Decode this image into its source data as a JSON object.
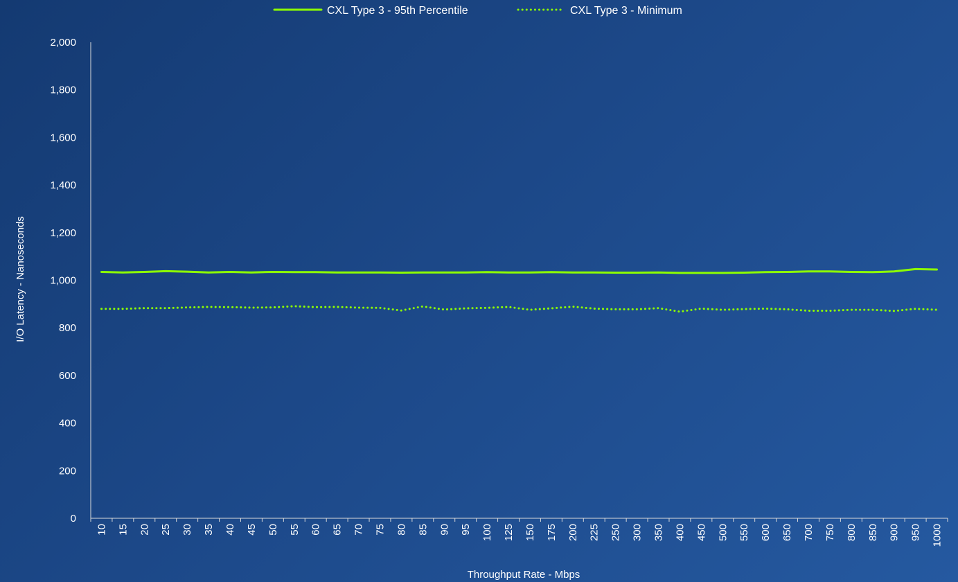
{
  "chart_data": {
    "type": "line",
    "title": "",
    "xlabel": "Throughput Rate - Mbps",
    "ylabel": "I/O Latency - Nanoseconds",
    "ylim": [
      0,
      2000
    ],
    "yticks": [
      "0",
      "200",
      "400",
      "600",
      "800",
      "1,000",
      "1,200",
      "1,400",
      "1,600",
      "1,800",
      "2,000"
    ],
    "yticks_values": [
      0,
      200,
      400,
      600,
      800,
      1000,
      1200,
      1400,
      1600,
      1800,
      2000
    ],
    "grid": false,
    "legend_position": "top-center",
    "categories": [
      "10",
      "15",
      "20",
      "25",
      "30",
      "35",
      "40",
      "45",
      "50",
      "55",
      "60",
      "65",
      "70",
      "75",
      "80",
      "85",
      "90",
      "95",
      "100",
      "125",
      "150",
      "175",
      "200",
      "225",
      "250",
      "300",
      "350",
      "400",
      "450",
      "500",
      "550",
      "600",
      "650",
      "700",
      "750",
      "800",
      "850",
      "900",
      "950",
      "1000"
    ],
    "series": [
      {
        "name": "CXL Type 3 - 95th Percentile",
        "style": "solid",
        "color": "#8dff00",
        "values": [
          1035,
          1033,
          1035,
          1038,
          1036,
          1033,
          1035,
          1033,
          1035,
          1034,
          1034,
          1033,
          1033,
          1033,
          1032,
          1033,
          1033,
          1033,
          1034,
          1033,
          1033,
          1034,
          1033,
          1033,
          1032,
          1032,
          1033,
          1031,
          1031,
          1031,
          1032,
          1034,
          1035,
          1037,
          1037,
          1035,
          1034,
          1037,
          1047,
          1045
        ]
      },
      {
        "name": "CXL Type 3 - Minimum",
        "style": "dotted",
        "color": "#8dff00",
        "values": [
          880,
          880,
          883,
          883,
          886,
          888,
          887,
          885,
          886,
          891,
          887,
          888,
          885,
          884,
          873,
          890,
          877,
          882,
          884,
          888,
          876,
          882,
          889,
          881,
          878,
          878,
          883,
          868,
          881,
          876,
          879,
          881,
          878,
          872,
          872,
          876,
          876,
          871,
          880,
          876
        ]
      }
    ]
  }
}
